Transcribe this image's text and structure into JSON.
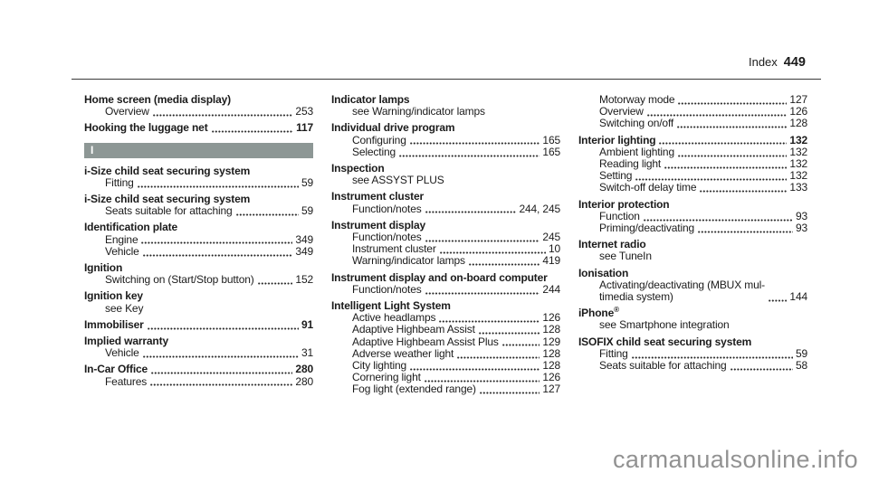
{
  "header": {
    "label": "Index",
    "page_number": "449"
  },
  "watermark": "carmanualsonline.info",
  "section_bar_color": "#8d9795",
  "columns": [
    {
      "blocks": [
        {
          "type": "entry",
          "title": "Home screen (media display)",
          "subs": [
            {
              "text": "Overview",
              "page": "253"
            }
          ]
        },
        {
          "type": "entry",
          "title": "Hooking the luggage net",
          "page": "117"
        },
        {
          "type": "section",
          "letter": "I"
        },
        {
          "type": "entry",
          "title": "i-Size child seat securing system",
          "subs": [
            {
              "text": "Fitting",
              "page": "59"
            }
          ]
        },
        {
          "type": "entry",
          "title": "i-Size child seat securing system",
          "subs": [
            {
              "text": "Seats suitable for attaching",
              "page": "59"
            }
          ]
        },
        {
          "type": "entry",
          "title": "Identification plate",
          "subs": [
            {
              "text": "Engine",
              "page": "349"
            },
            {
              "text": "Vehicle",
              "page": "349"
            }
          ]
        },
        {
          "type": "entry",
          "title": "Ignition",
          "subs": [
            {
              "text": "Switching on (Start/Stop button)",
              "page": "152"
            }
          ]
        },
        {
          "type": "entry",
          "title": "Ignition key",
          "subs": [
            {
              "text": "see Key"
            }
          ]
        },
        {
          "type": "entry",
          "title": "Immobiliser",
          "page": "91"
        },
        {
          "type": "entry",
          "title": "Implied warranty",
          "subs": [
            {
              "text": "Vehicle",
              "page": "31"
            }
          ]
        },
        {
          "type": "entry",
          "title": "In-Car Office",
          "page": "280",
          "subs": [
            {
              "text": "Features",
              "page": "280"
            }
          ]
        }
      ]
    },
    {
      "blocks": [
        {
          "type": "entry",
          "title": "Indicator lamps",
          "subs": [
            {
              "text": "see Warning/indicator lamps"
            }
          ]
        },
        {
          "type": "entry",
          "title": "Individual drive program",
          "subs": [
            {
              "text": "Configuring",
              "page": "165"
            },
            {
              "text": "Selecting",
              "page": "165"
            }
          ]
        },
        {
          "type": "entry",
          "title": "Inspection",
          "subs": [
            {
              "text": "see ASSYST PLUS"
            }
          ]
        },
        {
          "type": "entry",
          "title": "Instrument cluster",
          "subs": [
            {
              "text": "Function/notes",
              "page": "244, 245"
            }
          ]
        },
        {
          "type": "entry",
          "title": "Instrument display",
          "subs": [
            {
              "text": "Function/notes",
              "page": "245"
            },
            {
              "text": "Instrument cluster",
              "page": "10"
            },
            {
              "text": "Warning/indicator lamps",
              "page": "419"
            }
          ]
        },
        {
          "type": "entry",
          "title": "Instrument display and on-board computer",
          "subs": [
            {
              "text": "Function/notes",
              "page": "244"
            }
          ]
        },
        {
          "type": "entry",
          "title": "Intelligent Light System",
          "subs": [
            {
              "text": "Active headlamps",
              "page": "126"
            },
            {
              "text": "Adaptive Highbeam Assist",
              "page": "128"
            },
            {
              "text": "Adaptive Highbeam Assist Plus",
              "page": "129"
            },
            {
              "text": "Adverse weather light",
              "page": "128"
            },
            {
              "text": "City lighting",
              "page": "128"
            },
            {
              "text": "Cornering light",
              "page": "126"
            },
            {
              "text": "Fog light (extended range)",
              "page": "127"
            }
          ]
        }
      ]
    },
    {
      "blocks": [
        {
          "type": "entry",
          "subs": [
            {
              "text": "Motorway mode",
              "page": "127"
            },
            {
              "text": "Overview",
              "page": "126"
            },
            {
              "text": "Switching on/off",
              "page": "128"
            }
          ]
        },
        {
          "type": "entry",
          "title": "Interior lighting",
          "page": "132",
          "subs": [
            {
              "text": "Ambient lighting",
              "page": "132"
            },
            {
              "text": "Reading light",
              "page": "132"
            },
            {
              "text": "Setting",
              "page": "132"
            },
            {
              "text": "Switch-off delay time",
              "page": "133"
            }
          ]
        },
        {
          "type": "entry",
          "title": "Interior protection",
          "subs": [
            {
              "text": "Function",
              "page": "93"
            },
            {
              "text": "Priming/deactivating",
              "page": "93"
            }
          ]
        },
        {
          "type": "entry",
          "title": "Internet radio",
          "subs": [
            {
              "text": "see TuneIn"
            }
          ]
        },
        {
          "type": "entry",
          "title": "Ionisation",
          "subs": [
            {
              "text": "Activating/deactivating (MBUX mul-\ntimedia system)",
              "page": "144"
            }
          ]
        },
        {
          "type": "entry",
          "title": "iPhone",
          "title_sup": "®",
          "subs": [
            {
              "text": "see Smartphone integration"
            }
          ]
        },
        {
          "type": "entry",
          "title": "ISOFIX child seat securing system",
          "subs": [
            {
              "text": "Fitting",
              "page": "59"
            },
            {
              "text": "Seats suitable for attaching",
              "page": "58"
            }
          ]
        }
      ]
    }
  ]
}
